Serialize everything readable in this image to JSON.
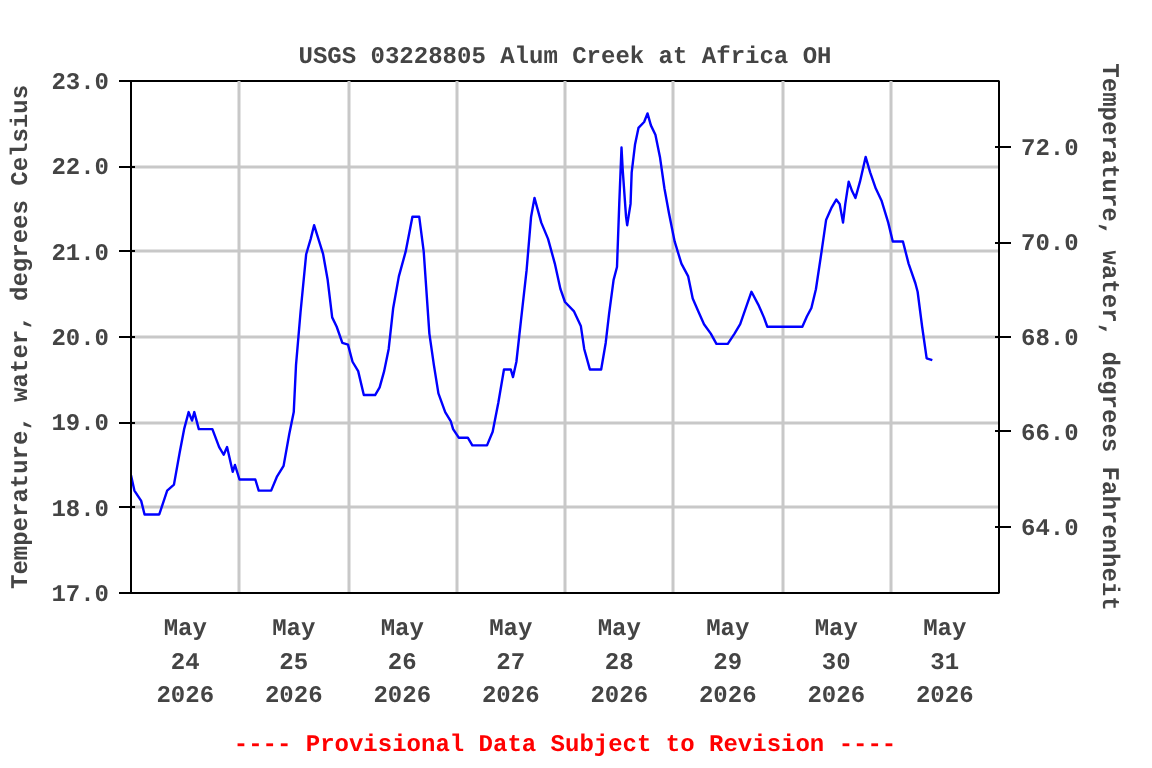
{
  "chart_data": {
    "type": "line",
    "title": "USGS 03228805 Alum Creek at Africa OH",
    "ylabel": "Temperature, water, degrees Celsius",
    "y2label": "Temperature, water, degrees Fahrenheit",
    "annotations": [
      "---- Provisional Data Subject to Revision ----"
    ],
    "x": [
      "2026-05-24T00:00",
      "2026-05-24T00:45",
      "2026-05-24T02:15",
      "2026-05-24T03:00",
      "2026-05-24T06:15",
      "2026-05-24T08:00",
      "2026-05-24T09:30",
      "2026-05-24T10:45",
      "2026-05-24T11:45",
      "2026-05-24T12:45",
      "2026-05-24T13:30",
      "2026-05-24T14:00",
      "2026-05-24T15:00",
      "2026-05-24T18:00",
      "2026-05-24T19:30",
      "2026-05-24T20:30",
      "2026-05-24T21:15",
      "2026-05-24T22:30",
      "2026-05-24T23:00",
      "2026-05-25T00:00",
      "2026-05-25T03:30",
      "2026-05-25T04:15",
      "2026-05-25T07:00",
      "2026-05-25T08:15",
      "2026-05-25T09:45",
      "2026-05-25T11:00",
      "2026-05-25T12:00",
      "2026-05-25T12:30",
      "2026-05-25T13:30",
      "2026-05-25T14:45",
      "2026-05-25T15:45",
      "2026-05-25T16:30",
      "2026-05-25T17:30",
      "2026-05-25T18:30",
      "2026-05-25T19:30",
      "2026-05-25T20:30",
      "2026-05-25T21:30",
      "2026-05-25T22:45",
      "2026-05-26T00:00",
      "2026-05-26T01:00",
      "2026-05-26T02:15",
      "2026-05-26T03:30",
      "2026-05-26T06:00",
      "2026-05-26T07:00",
      "2026-05-26T08:00",
      "2026-05-26T09:00",
      "2026-05-26T10:00",
      "2026-05-26T11:15",
      "2026-05-26T12:45",
      "2026-05-26T14:15",
      "2026-05-26T15:45",
      "2026-05-26T16:45",
      "2026-05-26T18:00",
      "2026-05-26T19:00",
      "2026-05-26T20:00",
      "2026-05-26T21:30",
      "2026-05-26T22:45",
      "2026-05-26T23:15",
      "2026-05-27T00:30",
      "2026-05-27T02:30",
      "2026-05-27T03:30",
      "2026-05-27T06:45",
      "2026-05-27T08:00",
      "2026-05-27T09:15",
      "2026-05-27T10:30",
      "2026-05-27T12:00",
      "2026-05-27T12:30",
      "2026-05-27T13:15",
      "2026-05-27T14:15",
      "2026-05-27T15:30",
      "2026-05-27T16:30",
      "2026-05-27T17:15",
      "2026-05-27T18:45",
      "2026-05-27T20:15",
      "2026-05-27T21:45",
      "2026-05-27T23:00",
      "2026-05-28T00:00",
      "2026-05-28T02:00",
      "2026-05-28T03:30",
      "2026-05-28T04:15",
      "2026-05-28T05:30",
      "2026-05-28T08:00",
      "2026-05-28T09:00",
      "2026-05-28T09:45",
      "2026-05-28T10:45",
      "2026-05-28T11:30",
      "2026-05-28T12:00",
      "2026-05-28T12:30",
      "2026-05-28T12:45",
      "2026-05-28T13:30",
      "2026-05-28T13:45",
      "2026-05-28T14:30",
      "2026-05-28T14:45",
      "2026-05-28T15:30",
      "2026-05-28T16:15",
      "2026-05-28T17:30",
      "2026-05-28T18:15",
      "2026-05-28T19:00",
      "2026-05-28T20:00",
      "2026-05-28T21:00",
      "2026-05-28T22:00",
      "2026-05-28T23:00",
      "2026-05-29T00:15",
      "2026-05-29T01:45",
      "2026-05-29T03:15",
      "2026-05-29T04:15",
      "2026-05-29T05:30",
      "2026-05-29T06:45",
      "2026-05-29T08:15",
      "2026-05-29T09:30",
      "2026-05-29T12:00",
      "2026-05-29T13:30",
      "2026-05-29T14:45",
      "2026-05-29T16:15",
      "2026-05-29T17:15",
      "2026-05-29T18:45",
      "2026-05-29T20:00",
      "2026-05-29T20:45",
      "2026-05-30T04:30",
      "2026-05-30T05:30",
      "2026-05-30T06:30",
      "2026-05-30T07:30",
      "2026-05-30T08:45",
      "2026-05-30T09:45",
      "2026-05-30T11:00",
      "2026-05-30T12:00",
      "2026-05-30T12:45",
      "2026-05-30T13:30",
      "2026-05-30T14:00",
      "2026-05-30T14:45",
      "2026-05-30T15:30",
      "2026-05-30T16:15",
      "2026-05-30T17:15",
      "2026-05-30T18:30",
      "2026-05-30T19:30",
      "2026-05-30T20:45",
      "2026-05-30T22:00",
      "2026-05-30T23:30",
      "2026-05-31T00:30",
      "2026-05-31T02:45",
      "2026-05-31T04:00",
      "2026-05-31T05:30",
      "2026-05-31T06:00",
      "2026-05-31T07:00",
      "2026-05-31T08:00",
      "2026-05-31T09:15"
    ],
    "series": [
      {
        "color": "#0000ff",
        "values": [
          18.38,
          18.2,
          18.08,
          17.92,
          17.92,
          18.2,
          18.27,
          18.64,
          18.92,
          19.12,
          19.02,
          19.12,
          18.92,
          18.92,
          18.71,
          18.62,
          18.71,
          18.42,
          18.5,
          18.33,
          18.33,
          18.2,
          18.2,
          18.36,
          18.49,
          18.86,
          19.12,
          19.67,
          20.29,
          20.97,
          21.15,
          21.31,
          21.14,
          20.97,
          20.67,
          20.23,
          20.12,
          19.93,
          19.91,
          19.71,
          19.6,
          19.32,
          19.32,
          19.41,
          19.6,
          19.86,
          20.34,
          20.71,
          21.0,
          21.41,
          21.41,
          21.0,
          20.04,
          19.67,
          19.34,
          19.12,
          19.01,
          18.92,
          18.82,
          18.82,
          18.73,
          18.73,
          18.89,
          19.23,
          19.62,
          19.62,
          19.53,
          19.71,
          20.19,
          20.78,
          21.41,
          21.63,
          21.34,
          21.15,
          20.86,
          20.56,
          20.41,
          20.3,
          20.13,
          19.86,
          19.62,
          19.62,
          19.93,
          20.27,
          20.67,
          20.82,
          21.56,
          22.22,
          21.97,
          21.41,
          21.31,
          21.56,
          21.93,
          22.26,
          22.45,
          22.52,
          22.62,
          22.48,
          22.37,
          22.11,
          21.74,
          21.45,
          21.12,
          20.86,
          20.71,
          20.45,
          20.3,
          20.15,
          20.04,
          19.92,
          19.92,
          20.04,
          20.15,
          20.38,
          20.53,
          20.38,
          20.23,
          20.12,
          20.12,
          20.24,
          20.34,
          20.56,
          21.0,
          21.37,
          21.52,
          21.61,
          21.56,
          21.34,
          21.56,
          21.82,
          21.71,
          21.63,
          21.82,
          22.11,
          21.93,
          21.74,
          21.6,
          21.34,
          21.12,
          21.12,
          20.86,
          20.63,
          20.53,
          20.12,
          19.75,
          19.73
        ]
      }
    ],
    "xlim": [
      "2026-05-24T00:00",
      "2026-06-01T00:00"
    ],
    "xticks": [
      {
        "value": "2026-05-25T00:00",
        "label": null
      },
      {
        "value": "2026-05-26T00:00",
        "label": null
      },
      {
        "value": "2026-05-27T00:00",
        "label": null
      },
      {
        "value": "2026-05-28T00:00",
        "label": null
      },
      {
        "value": "2026-05-29T00:00",
        "label": null
      },
      {
        "value": "2026-05-30T00:00",
        "label": null
      },
      {
        "value": "2026-05-31T00:00",
        "label": null
      },
      {
        "value": "2026-05-24T12:00",
        "label": "May\n24\n2026"
      },
      {
        "value": "2026-05-25T12:00",
        "label": "May\n25\n2026"
      },
      {
        "value": "2026-05-26T12:00",
        "label": "May\n26\n2026"
      },
      {
        "value": "2026-05-27T12:00",
        "label": "May\n27\n2026"
      },
      {
        "value": "2026-05-28T12:00",
        "label": "May\n28\n2026"
      },
      {
        "value": "2026-05-29T12:00",
        "label": "May\n29\n2026"
      },
      {
        "value": "2026-05-30T12:00",
        "label": "May\n30\n2026"
      },
      {
        "value": "2026-05-31T12:00",
        "label": "May\n31\n2026"
      }
    ],
    "ylim": [
      17.0,
      23.0
    ],
    "yticks": [
      {
        "value": 17,
        "label": "17.0"
      },
      {
        "value": 18,
        "label": "18.0"
      },
      {
        "value": 19,
        "label": "19.0"
      },
      {
        "value": 20,
        "label": "20.0"
      },
      {
        "value": 21,
        "label": "21.0"
      },
      {
        "value": 22,
        "label": "22.0"
      },
      {
        "value": 23,
        "label": "23.0"
      }
    ],
    "y2lim": [
      62.6,
      73.4
    ],
    "y2ticks": [
      {
        "value": 64,
        "label": "64.0"
      },
      {
        "value": 66,
        "label": "66.0"
      },
      {
        "value": 68,
        "label": "68.0"
      },
      {
        "value": 70,
        "label": "70.0"
      },
      {
        "value": 72,
        "label": "72.0"
      }
    ],
    "grid": true,
    "marker": "none",
    "line_style": "solid"
  }
}
